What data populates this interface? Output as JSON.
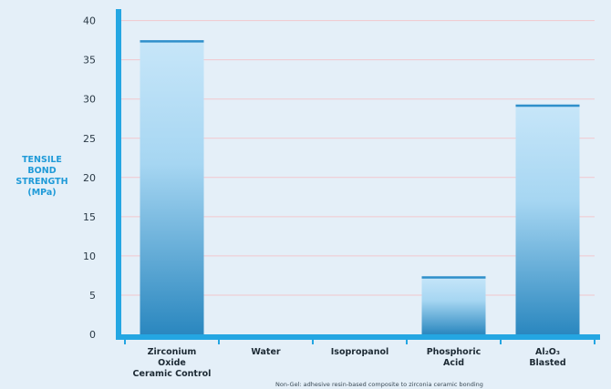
{
  "colors": {
    "background": "#e4eff8",
    "axis": "#24a6e2",
    "gridline": "#f2c7cd",
    "bar_top": "#c7e6f9",
    "bar_bottom": "#2a87bf",
    "ylabel": "#1e9ad8"
  },
  "chart_data": {
    "type": "bar",
    "categories": [
      "Zirconium Oxide Ceramic Control",
      "Water",
      "Isopropanol",
      "Phosphoric Acid",
      "Al2O3 Blasted"
    ],
    "category_lines": [
      [
        "Zirconium",
        "Oxide",
        "Ceramic Control"
      ],
      [
        "Water"
      ],
      [
        "Isopropanol"
      ],
      [
        "Phosphoric",
        "Acid"
      ],
      [
        "Al₂O₃",
        "Blasted"
      ]
    ],
    "values": [
      37.5,
      0,
      0,
      7.4,
      29.3
    ],
    "ylabel": "TENSILE BOND STRENGTH (MPa)",
    "ylabel_lines": [
      "TENSILE",
      "BOND",
      "STRENGTH",
      "(MPa)"
    ],
    "ylim": [
      0,
      41
    ],
    "yticks": [
      0,
      5,
      10,
      15,
      20,
      25,
      30,
      35,
      40
    ],
    "grid": true,
    "footnote": "Non-Gel: adhesive resin-based composite to zirconia ceramic bonding"
  }
}
